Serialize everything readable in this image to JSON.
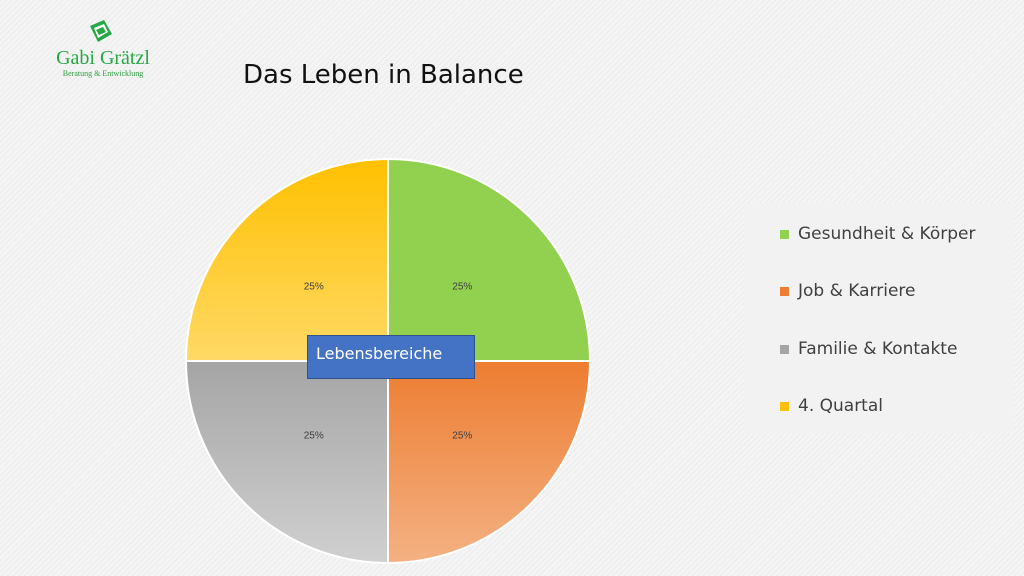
{
  "logo": {
    "name": "Gabi Grätzl",
    "tagline": "Beratung & Entwicklung",
    "color": "#27a844"
  },
  "title": "Das Leben in Balance",
  "center_label": "Lebensbereiche",
  "chart_data": {
    "type": "pie",
    "title": "Das Leben in Balance",
    "categories": [
      "Gesundheit & Körper",
      "Job & Karriere",
      "Familie & Kontakte",
      "4. Quartal"
    ],
    "values": [
      25,
      25,
      25,
      25
    ],
    "labels": [
      "25%",
      "25%",
      "25%",
      "25%"
    ],
    "colors": [
      "#92d050",
      "#ed7d31",
      "#a5a5a5",
      "#ffc000"
    ],
    "legend_position": "right"
  }
}
